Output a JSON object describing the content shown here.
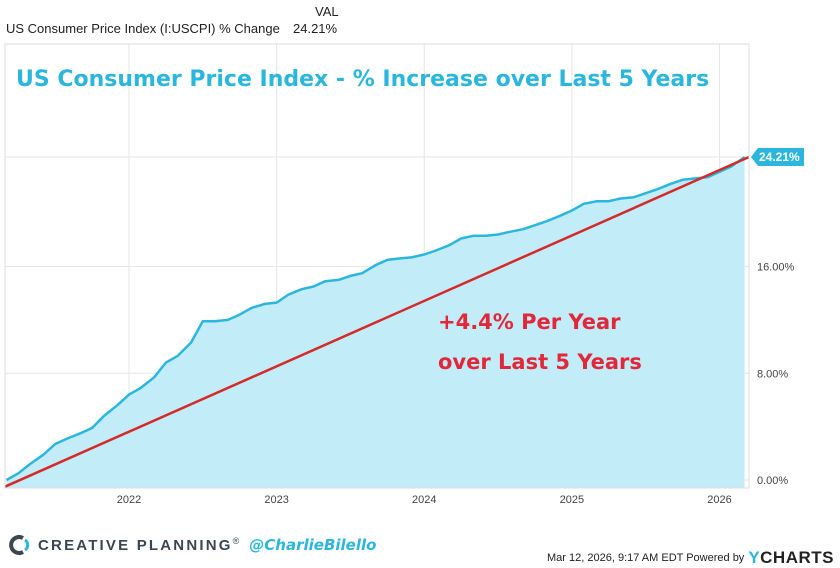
{
  "header": {
    "column_label": "VAL",
    "series_name": "US Consumer Price Index (I:USCPI) % Change",
    "series_value": "24.21%"
  },
  "chart_data": {
    "type": "area",
    "title": "US Consumer Price Index - % Increase over Last 5 Years",
    "annotation_line1": "+4.4% Per Year",
    "annotation_line2": "over Last 5 Years",
    "end_label": "24.21%",
    "y_ticks": [
      "0.00%",
      "8.00%",
      "16.00%"
    ],
    "y_tick_values": [
      0,
      8,
      16
    ],
    "ylim": [
      -0.5,
      24.21
    ],
    "x_ticks": [
      "2022",
      "2023",
      "2024",
      "2025",
      "2026"
    ],
    "x_tick_values": [
      2022.0,
      2023.0,
      2024.0,
      2025.0,
      2026.0
    ],
    "xlim": [
      2021.16,
      2026.2
    ],
    "colors": {
      "line": "#2bb6dd",
      "fill": "#c2ecf8",
      "trend": "#d42a2a",
      "annotation": "#e0283a",
      "title": "#2bb6dd"
    },
    "series": [
      {
        "x": [
          2021.17,
          2021.25,
          2021.33,
          2021.42,
          2021.5,
          2021.58,
          2021.67,
          2021.75,
          2021.83,
          2021.92,
          2022.0,
          2022.08,
          2022.17,
          2022.25,
          2022.33,
          2022.42,
          2022.5,
          2022.58,
          2022.67,
          2022.75,
          2022.83,
          2022.92,
          2023.0,
          2023.08,
          2023.17,
          2023.25,
          2023.33,
          2023.42,
          2023.5,
          2023.58,
          2023.67,
          2023.75,
          2023.83,
          2023.92,
          2024.0,
          2024.08,
          2024.17,
          2024.25,
          2024.33,
          2024.42,
          2024.5,
          2024.58,
          2024.67,
          2024.75,
          2024.83,
          2024.92,
          2025.0,
          2025.08,
          2025.17,
          2025.25,
          2025.33,
          2025.42,
          2025.5,
          2025.58,
          2025.67,
          2025.75,
          2025.83,
          2025.92,
          2026.0,
          2026.08,
          2026.17
        ],
        "y": [
          0.0,
          0.5,
          1.2,
          1.9,
          2.7,
          3.1,
          3.5,
          3.9,
          4.8,
          5.6,
          6.4,
          6.9,
          7.7,
          8.8,
          9.3,
          10.3,
          11.9,
          11.9,
          12.0,
          12.4,
          12.9,
          13.2,
          13.3,
          13.9,
          14.3,
          14.5,
          14.9,
          15.0,
          15.3,
          15.5,
          16.1,
          16.5,
          16.6,
          16.7,
          16.9,
          17.2,
          17.6,
          18.1,
          18.3,
          18.3,
          18.4,
          18.6,
          18.8,
          19.1,
          19.4,
          19.8,
          20.2,
          20.7,
          20.9,
          20.9,
          21.1,
          21.2,
          21.5,
          21.8,
          22.2,
          22.5,
          22.6,
          22.7,
          23.1,
          23.5,
          24.21
        ]
      }
    ],
    "trend": {
      "x": [
        2021.16,
        2026.2
      ],
      "y": [
        -0.5,
        24.21
      ]
    }
  },
  "footer": {
    "brand": "CREATIVE PLANNING",
    "trademark": "®",
    "handle": "@CharlieBilello",
    "timestamp": "Mar 12, 2026, 9:17 AM EDT Powered by",
    "ycharts_y": "Y",
    "ycharts_rest": "CHARTS"
  }
}
